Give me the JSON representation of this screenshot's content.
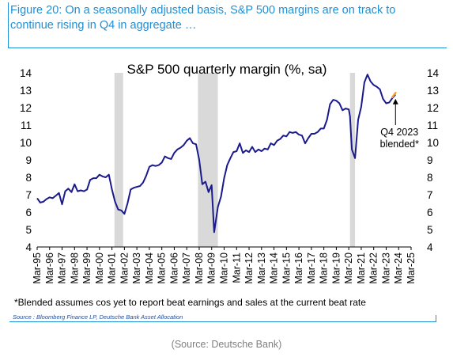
{
  "figure_title": "Figure 20: On a seasonally adjusted basis, S&P 500 margins are on track to continue rising in Q4 in aggregate …",
  "footnote": "*Blended assumes cos yet to report beat earnings and sales at the current beat rate",
  "source": "Source : Bloomberg Finance LP, Deutsche Bank Asset Allocation",
  "caption": "(Source: Deutsche Bank)",
  "colors": {
    "line": "#1a1a8c",
    "blended": "#f0a030",
    "recession": "#d9d9d9",
    "accent": "#1f8fd6"
  },
  "chart_data": {
    "type": "line",
    "title": "S&P 500 quarterly margin (%, sa)",
    "ylim": [
      4,
      14
    ],
    "y_ticks": [
      4,
      5,
      6,
      7,
      8,
      9,
      10,
      11,
      12,
      13,
      14
    ],
    "x_ticks": [
      "Mar-95",
      "Mar-96",
      "Mar-97",
      "Mar-98",
      "Mar-99",
      "Mar-00",
      "Mar-01",
      "Mar-02",
      "Mar-03",
      "Mar-04",
      "Mar-05",
      "Mar-06",
      "Mar-07",
      "Mar-08",
      "Mar-09",
      "Mar-10",
      "Mar-11",
      "Mar-12",
      "Mar-13",
      "Mar-14",
      "Mar-15",
      "Mar-16",
      "Mar-17",
      "Mar-18",
      "Mar-19",
      "Mar-20",
      "Mar-21",
      "Mar-22",
      "Mar-23",
      "Mar-24",
      "Mar-25"
    ],
    "recession_shading": [
      [
        2001.2,
        2001.9
      ],
      [
        2007.9,
        2009.5
      ],
      [
        2020.1,
        2020.5
      ]
    ],
    "series": [
      {
        "points": [
          [
            1995.0,
            6.8
          ],
          [
            1995.25,
            6.55
          ],
          [
            1995.5,
            6.6
          ],
          [
            1995.75,
            6.75
          ],
          [
            1996.0,
            6.85
          ],
          [
            1996.25,
            6.8
          ],
          [
            1996.5,
            6.95
          ],
          [
            1996.75,
            7.1
          ],
          [
            1997.0,
            6.45
          ],
          [
            1997.25,
            7.2
          ],
          [
            1997.5,
            7.35
          ],
          [
            1997.75,
            7.15
          ],
          [
            1998.0,
            7.6
          ],
          [
            1998.25,
            7.2
          ],
          [
            1998.5,
            7.25
          ],
          [
            1998.75,
            7.2
          ],
          [
            1999.0,
            7.3
          ],
          [
            1999.25,
            7.85
          ],
          [
            1999.5,
            7.95
          ],
          [
            1999.75,
            7.95
          ],
          [
            2000.0,
            8.15
          ],
          [
            2000.25,
            8.05
          ],
          [
            2000.5,
            8.0
          ],
          [
            2000.75,
            8.15
          ],
          [
            2001.0,
            7.3
          ],
          [
            2001.25,
            6.6
          ],
          [
            2001.5,
            6.15
          ],
          [
            2001.75,
            6.1
          ],
          [
            2002.0,
            5.9
          ],
          [
            2002.25,
            6.5
          ],
          [
            2002.5,
            7.3
          ],
          [
            2002.75,
            7.4
          ],
          [
            2003.0,
            7.45
          ],
          [
            2003.25,
            7.5
          ],
          [
            2003.5,
            7.7
          ],
          [
            2003.75,
            8.1
          ],
          [
            2004.0,
            8.6
          ],
          [
            2004.25,
            8.7
          ],
          [
            2004.5,
            8.65
          ],
          [
            2004.75,
            8.7
          ],
          [
            2005.0,
            8.85
          ],
          [
            2005.25,
            9.2
          ],
          [
            2005.5,
            9.1
          ],
          [
            2005.75,
            9.05
          ],
          [
            2006.0,
            9.4
          ],
          [
            2006.25,
            9.6
          ],
          [
            2006.5,
            9.7
          ],
          [
            2006.75,
            9.85
          ],
          [
            2007.0,
            10.1
          ],
          [
            2007.25,
            10.25
          ],
          [
            2007.5,
            9.95
          ],
          [
            2007.75,
            9.9
          ],
          [
            2008.0,
            9.0
          ],
          [
            2008.25,
            7.6
          ],
          [
            2008.5,
            7.75
          ],
          [
            2008.75,
            7.15
          ],
          [
            2009.0,
            7.55
          ],
          [
            2009.2,
            4.85
          ],
          [
            2009.5,
            6.3
          ],
          [
            2009.75,
            6.9
          ],
          [
            2010.0,
            7.95
          ],
          [
            2010.25,
            8.7
          ],
          [
            2010.5,
            9.1
          ],
          [
            2010.75,
            9.45
          ],
          [
            2011.0,
            9.5
          ],
          [
            2011.25,
            9.95
          ],
          [
            2011.5,
            9.4
          ],
          [
            2011.75,
            9.55
          ],
          [
            2012.0,
            9.45
          ],
          [
            2012.25,
            9.75
          ],
          [
            2012.5,
            9.45
          ],
          [
            2012.75,
            9.6
          ],
          [
            2013.0,
            9.5
          ],
          [
            2013.25,
            9.65
          ],
          [
            2013.5,
            9.6
          ],
          [
            2013.75,
            9.95
          ],
          [
            2014.0,
            9.85
          ],
          [
            2014.25,
            10.1
          ],
          [
            2014.5,
            10.2
          ],
          [
            2014.75,
            10.4
          ],
          [
            2015.0,
            10.35
          ],
          [
            2015.25,
            10.6
          ],
          [
            2015.5,
            10.55
          ],
          [
            2015.75,
            10.6
          ],
          [
            2016.0,
            10.45
          ],
          [
            2016.25,
            10.4
          ],
          [
            2016.5,
            9.95
          ],
          [
            2016.75,
            10.25
          ],
          [
            2017.0,
            10.5
          ],
          [
            2017.25,
            10.5
          ],
          [
            2017.5,
            10.6
          ],
          [
            2017.75,
            10.8
          ],
          [
            2018.0,
            10.8
          ],
          [
            2018.25,
            11.3
          ],
          [
            2018.5,
            12.2
          ],
          [
            2018.75,
            12.45
          ],
          [
            2019.0,
            12.4
          ],
          [
            2019.25,
            12.25
          ],
          [
            2019.5,
            11.85
          ],
          [
            2019.75,
            11.95
          ],
          [
            2020.0,
            11.9
          ],
          [
            2020.1,
            11.5
          ],
          [
            2020.25,
            9.6
          ],
          [
            2020.5,
            9.1
          ],
          [
            2020.75,
            11.3
          ],
          [
            2021.0,
            12.05
          ],
          [
            2021.25,
            13.45
          ],
          [
            2021.5,
            13.9
          ],
          [
            2021.75,
            13.5
          ],
          [
            2022.0,
            13.3
          ],
          [
            2022.25,
            13.2
          ],
          [
            2022.5,
            13.05
          ],
          [
            2022.75,
            12.5
          ],
          [
            2023.0,
            12.25
          ],
          [
            2023.25,
            12.3
          ],
          [
            2023.5,
            12.55
          ],
          [
            2023.75,
            12.75
          ]
        ]
      },
      {
        "points": [
          [
            2023.5,
            12.6
          ],
          [
            2023.75,
            12.85
          ]
        ]
      }
    ],
    "annotations": [
      {
        "text_lines": [
          "Q4 2023",
          "blended*"
        ]
      }
    ]
  }
}
